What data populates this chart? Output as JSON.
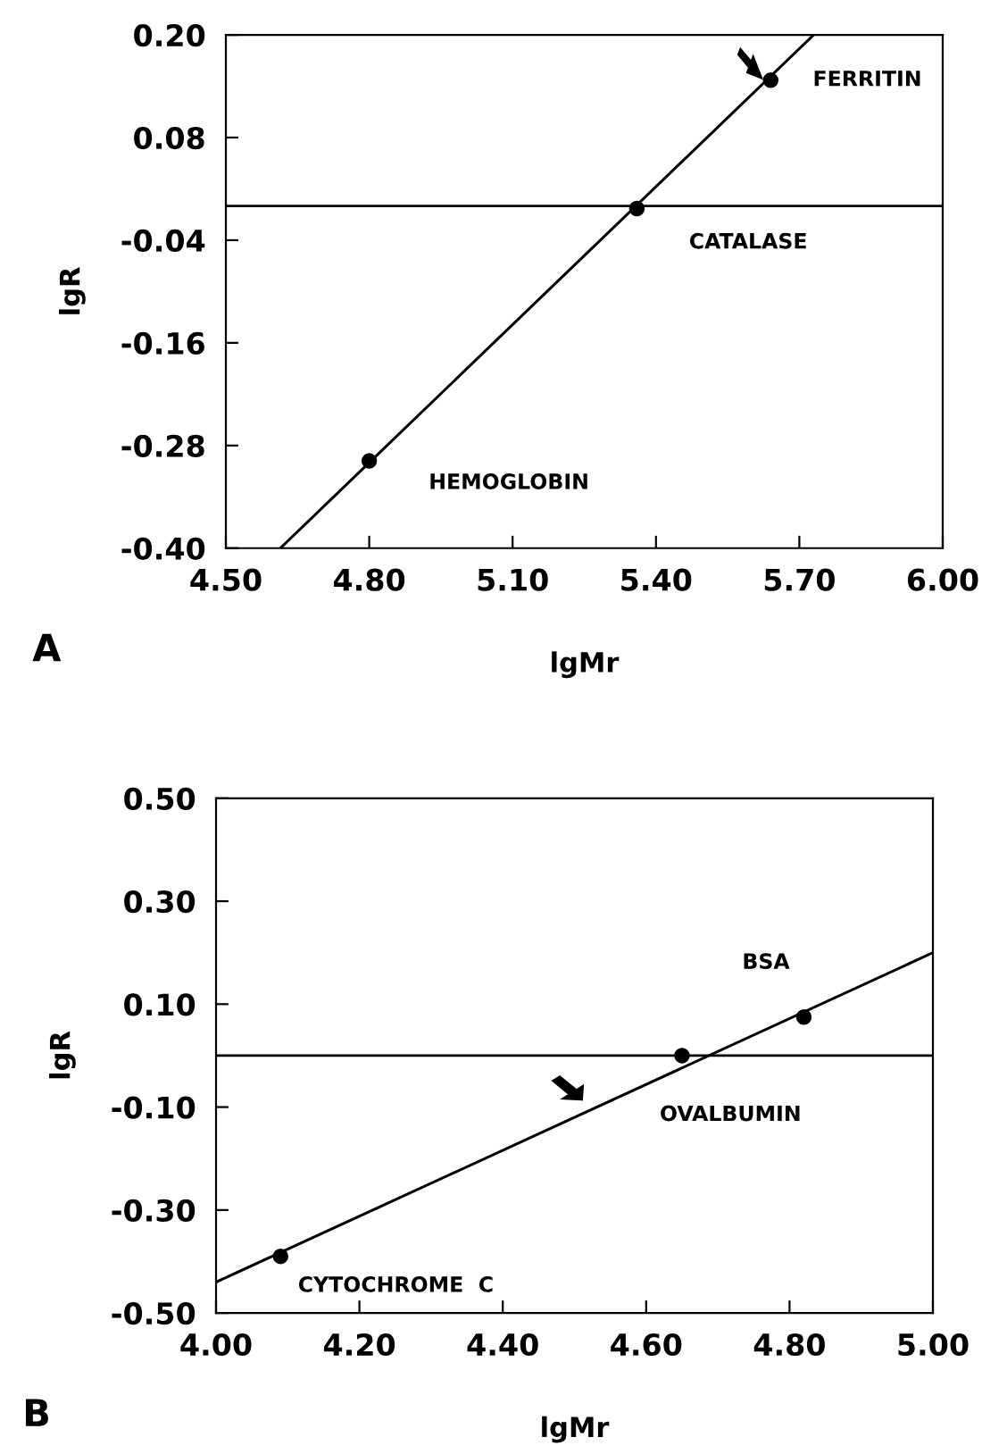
{
  "chart_data": [
    {
      "type": "scatter",
      "xlabel": "lgMr",
      "ylabel": "lgR",
      "xlim": [
        4.5,
        6.0
      ],
      "ylim": [
        -0.4,
        0.2
      ],
      "xticks": [
        {
          "value": 4.5,
          "label": "4.50"
        },
        {
          "value": 4.8,
          "label": "4.80"
        },
        {
          "value": 5.1,
          "label": "5.10"
        },
        {
          "value": 5.4,
          "label": "5.40"
        },
        {
          "value": 5.7,
          "label": "5.70"
        },
        {
          "value": 6.0,
          "label": "6.00"
        }
      ],
      "yticks": [
        {
          "value": -0.4,
          "label": "-0.40"
        },
        {
          "value": -0.28,
          "label": "-0.28"
        },
        {
          "value": -0.16,
          "label": "-0.16"
        },
        {
          "value": -0.04,
          "label": "-0.04"
        },
        {
          "value": 0.08,
          "label": "0.08"
        },
        {
          "value": 0.2,
          "label": "0.20"
        }
      ],
      "series": [
        {
          "color": "#000000",
          "marker": "circle",
          "x": [
            4.8,
            5.36,
            5.64
          ],
          "values": [
            -0.298,
            -0.003,
            0.147
          ]
        },
        {
          "type": "line",
          "color": "#000000",
          "line_style": "solid",
          "marker": "none",
          "x": [
            4.614,
            5.73
          ],
          "values": [
            -0.4,
            0.2
          ]
        }
      ],
      "ref_lines": [
        {
          "axis": "y",
          "value": 0,
          "color": "#000000"
        }
      ],
      "grid": false,
      "legend": false,
      "annotations": [
        {
          "text": "HEMOGLOBIN",
          "x": 4.8,
          "y": -0.298
        },
        {
          "text": "FERRITIN",
          "x": 5.64,
          "y": 0.147
        },
        "CATALASE",
        "A"
      ]
    },
    {
      "type": "scatter",
      "xlabel": "lgMr",
      "ylabel": "lgR",
      "xlim": [
        4.0,
        5.0
      ],
      "ylim": [
        -0.5,
        0.5
      ],
      "xticks": [
        {
          "value": 4.0,
          "label": "4.00"
        },
        {
          "value": 4.2,
          "label": "4.20"
        },
        {
          "value": 4.4,
          "label": "4.40"
        },
        {
          "value": 4.6,
          "label": "4.60"
        },
        {
          "value": 4.8,
          "label": "4.80"
        },
        {
          "value": 5.0,
          "label": "5.00"
        }
      ],
      "yticks": [
        {
          "value": -0.5,
          "label": "-0.50"
        },
        {
          "value": -0.3,
          "label": "-0.30"
        },
        {
          "value": -0.1,
          "label": "-0.10"
        },
        {
          "value": 0.1,
          "label": "0.10"
        },
        {
          "value": 0.3,
          "label": "0.30"
        },
        {
          "value": 0.5,
          "label": "0.50"
        }
      ],
      "series": [
        {
          "color": "#000000",
          "marker": "circle",
          "x": [
            4.09,
            4.65,
            4.82
          ],
          "values": [
            -0.39,
            0.0,
            0.075
          ]
        },
        {
          "type": "line",
          "color": "#000000",
          "line_style": "solid",
          "marker": "none",
          "x": [
            4.0,
            5.0
          ],
          "values": [
            -0.44,
            0.2
          ]
        }
      ],
      "ref_lines": [
        {
          "axis": "y",
          "value": 0,
          "color": "#000000"
        }
      ],
      "grid": false,
      "legend": false,
      "annotations": [
        {
          "text": "CYTOCHROME  C",
          "x": 4.09,
          "y": -0.39
        },
        {
          "text": "OVALBUMIN",
          "x": 4.65,
          "y": 0.0
        },
        "BSA",
        "B"
      ]
    }
  ]
}
